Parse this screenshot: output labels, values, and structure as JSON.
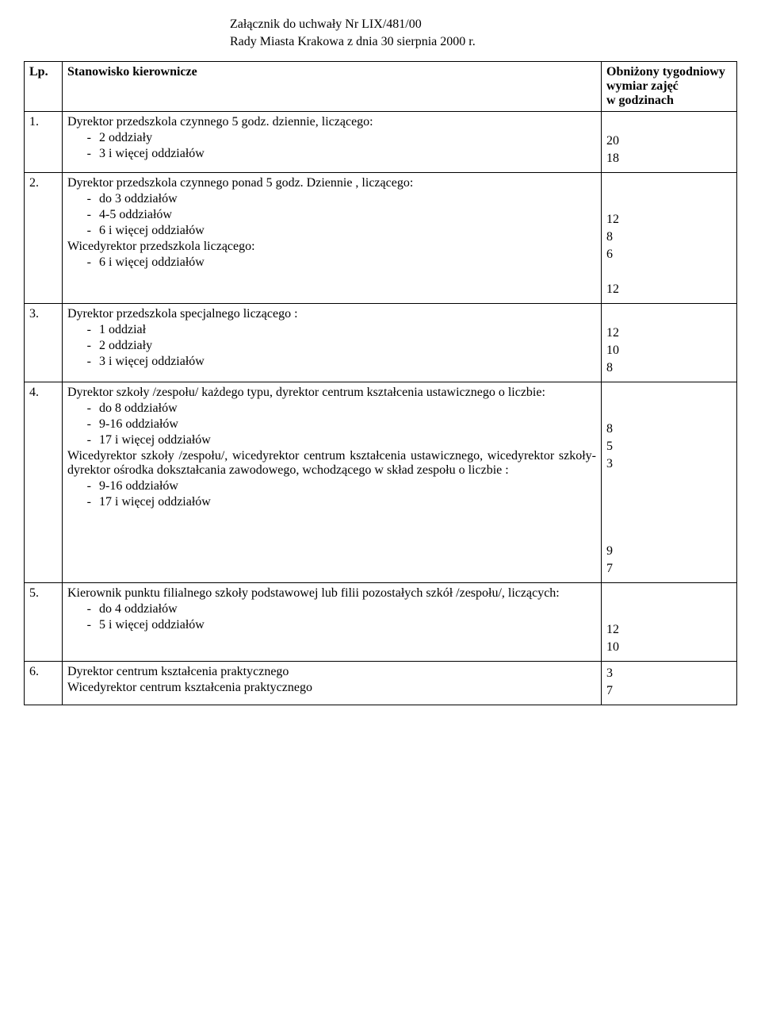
{
  "attachment": {
    "line1": "Załącznik do uchwały Nr LIX/481/00",
    "line2": "Rady Miasta Krakowa z dnia 30 sierpnia 2000 r."
  },
  "headers": {
    "lp": "Lp.",
    "position": "Stanowisko kierownicze",
    "hours": "Obniżony tygodniowy wymiar zajęć w godzinach"
  },
  "rows": [
    {
      "lp": "1.",
      "lines": [
        {
          "text": "Dyrektor przedszkola czynnego 5 godz. dziennie, liczącego:",
          "indent": false,
          "justify": false
        },
        {
          "text": "2 oddziały",
          "indent": true
        },
        {
          "text": "3 i więcej oddziałów",
          "indent": true
        }
      ],
      "values": [
        "",
        "20",
        "18"
      ]
    },
    {
      "lp": "2.",
      "lines": [
        {
          "text": "Dyrektor przedszkola czynnego ponad 5 godz. Dziennie , liczącego:",
          "indent": false,
          "justify": false
        },
        {
          "text": "do 3 oddziałów",
          "indent": true
        },
        {
          "text": "4-5 oddziałów",
          "indent": true
        },
        {
          "text": "6 i więcej oddziałów",
          "indent": true
        },
        {
          "text": "Wicedyrektor przedszkola liczącego:",
          "indent": false
        },
        {
          "text": "6 i więcej oddziałów",
          "indent": true
        }
      ],
      "values": [
        "",
        "",
        "12",
        "8",
        "6",
        "",
        "12"
      ]
    },
    {
      "lp": "3.",
      "lines": [
        {
          "text": "Dyrektor przedszkola specjalnego  liczącego :",
          "indent": false
        },
        {
          "text": "1 oddział",
          "indent": true
        },
        {
          "text": "2 oddziały",
          "indent": true
        },
        {
          "text": "3 i więcej oddziałów",
          "indent": true
        }
      ],
      "values": [
        "",
        "12",
        "10",
        "8"
      ]
    },
    {
      "lp": "4.",
      "lines": [
        {
          "text": "Dyrektor szkoły /zespołu/ każdego typu, dyrektor centrum kształcenia ustawicznego o liczbie:",
          "indent": false,
          "justify": true
        },
        {
          "text": "do 8 oddziałów",
          "indent": true
        },
        {
          "text": "9-16 oddziałów",
          "indent": true
        },
        {
          "text": "17 i więcej oddziałów",
          "indent": true
        },
        {
          "text": "Wicedyrektor szkoły /zespołu/, wicedyrektor centrum kształcenia ustawicznego, wicedyrektor szkoły-dyrektor ośrodka dokształcania zawodowego, wchodzącego w skład zespołu o liczbie  :",
          "indent": false,
          "justify": true
        },
        {
          "text": "9-16 oddziałów",
          "indent": true
        },
        {
          "text": "17 i więcej oddziałów",
          "indent": true
        }
      ],
      "values": [
        "",
        "",
        "8",
        "5",
        "3",
        "",
        "",
        "",
        "",
        "9",
        "7"
      ]
    },
    {
      "lp": "5.",
      "lines": [
        {
          "text": "Kierownik punktu filialnego szkoły podstawowej lub filii pozostałych szkół /zespołu/, liczących:",
          "indent": false,
          "justify": true
        },
        {
          "text": "do 4 oddziałów",
          "indent": true
        },
        {
          "text": "5 i więcej oddziałów",
          "indent": true
        }
      ],
      "values": [
        "",
        "",
        "12",
        "10"
      ]
    },
    {
      "lp": "6.",
      "lines": [
        {
          "text": "Dyrektor centrum kształcenia praktycznego",
          "indent": false
        },
        {
          "text": "Wicedyrektor centrum kształcenia praktycznego",
          "indent": false
        }
      ],
      "values": [
        "3",
        "7"
      ]
    }
  ]
}
